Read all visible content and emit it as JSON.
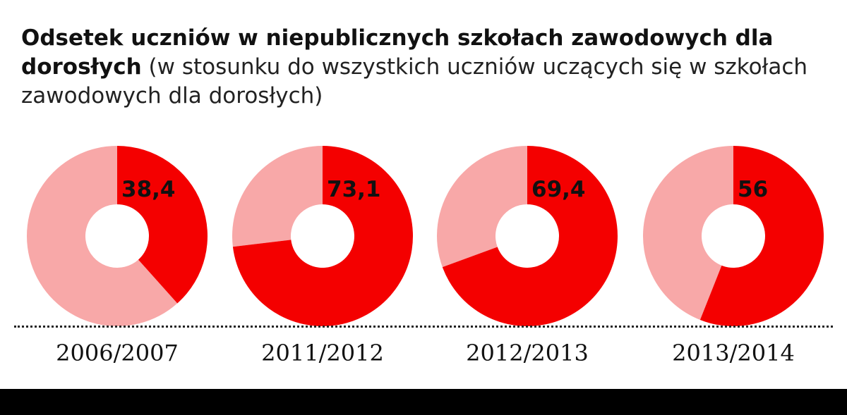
{
  "title": {
    "bold": "Odsetek uczniów w niepublicznych szkołach zawodowych dla dorosłych",
    "normal": "(w stosunku do wszystkich uczniów uczących się w szkołach zawodowych dla dorosłych)"
  },
  "colors": {
    "highlight": "#f40000",
    "rest": "#f8a8a8"
  },
  "chart_data": {
    "type": "pie",
    "style": "donut",
    "title": "Odsetek uczniów w niepublicznych szkołach zawodowych dla dorosłych (w stosunku do wszystkich uczniów uczących się w szkołach zawodowych dla dorosłych)",
    "categories": [
      "2006/2007",
      "2011/2012",
      "2012/2013",
      "2013/2014"
    ],
    "values": [
      38.4,
      73.1,
      69.4,
      56
    ],
    "value_labels": [
      "38,4",
      "73,1",
      "69,4",
      "56"
    ],
    "total": 100,
    "legend": "none",
    "grid": false
  }
}
